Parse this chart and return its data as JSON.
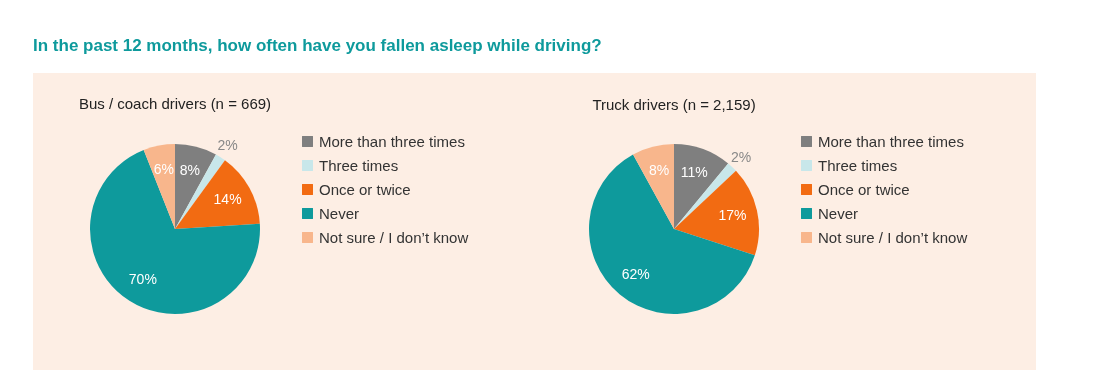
{
  "chart_data": [
    {
      "type": "pie",
      "title": "In the past 12 months, how often have you fallen asleep while driving?",
      "subtitle": "Bus / coach drivers (n = 669)",
      "categories": [
        "More than three times",
        "Three times",
        "Once or twice",
        "Never",
        "Not sure / I don’t know"
      ],
      "values": [
        8,
        2,
        14,
        70,
        6
      ],
      "value_labels": [
        "8%",
        "2%",
        "14%",
        "70%",
        "6%"
      ],
      "data_labels": true,
      "colors": [
        "#7f7f7f",
        "#c8e7ea",
        "#f26b12",
        "#0e9a9c",
        "#f8b68c"
      ],
      "legend": "right"
    },
    {
      "type": "pie",
      "subtitle": "Truck drivers (n = 2,159)",
      "categories": [
        "More than three times",
        "Three times",
        "Once or twice",
        "Never",
        "Not sure / I don’t know"
      ],
      "values": [
        11,
        2,
        17,
        62,
        8
      ],
      "value_labels": [
        "11%",
        "2%",
        "17%",
        "62%",
        "8%"
      ],
      "data_labels": true,
      "colors": [
        "#7f7f7f",
        "#c8e7ea",
        "#f26b12",
        "#0e9a9c",
        "#f8b68c"
      ],
      "legend": "right"
    }
  ]
}
